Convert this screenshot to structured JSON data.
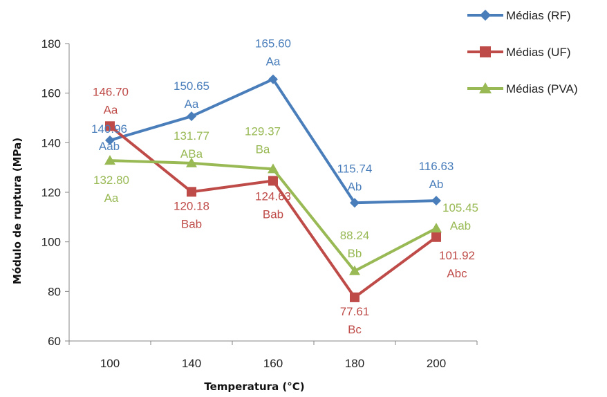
{
  "chart_data": {
    "type": "line",
    "title": "",
    "xlabel": "Temperatura (°C)",
    "ylabel": "Módulo de ruptura (MPa)",
    "categories": [
      "100",
      "140",
      "160",
      "180",
      "200"
    ],
    "ylim": [
      60,
      180
    ],
    "yticks": [
      "60",
      "80",
      "100",
      "120",
      "140",
      "160",
      "180"
    ],
    "grid": false,
    "legend_position": "top-right",
    "series": [
      {
        "name": "Médias (RF)",
        "color": "#4a7ebb",
        "marker": "diamond",
        "values": [
          140.96,
          150.65,
          165.6,
          115.74,
          116.63
        ],
        "labels": [
          "140.96",
          "150.65",
          "165.60",
          "115.74",
          "116.63"
        ],
        "letters": [
          "Aab",
          "Aa",
          "Aa",
          "Ab",
          "Ab"
        ]
      },
      {
        "name": "Médias (UF)",
        "color": "#be4b48",
        "marker": "square",
        "values": [
          146.7,
          120.18,
          124.63,
          77.61,
          101.92
        ],
        "labels": [
          "146.70",
          "120.18",
          "124.63",
          "77.61",
          "101.92"
        ],
        "letters": [
          "Aa",
          "Bab",
          "Bab",
          "Bc",
          "Abc"
        ]
      },
      {
        "name": "Médias  (PVA)",
        "color": "#98b954",
        "marker": "triangle",
        "values": [
          132.8,
          131.77,
          129.37,
          88.24,
          105.45
        ],
        "labels": [
          "132.80",
          "131.77",
          "129.37",
          "88.24",
          "105.45"
        ],
        "letters": [
          "Aa",
          "ABa",
          "Ba",
          "Bb",
          "Aab"
        ]
      }
    ]
  }
}
